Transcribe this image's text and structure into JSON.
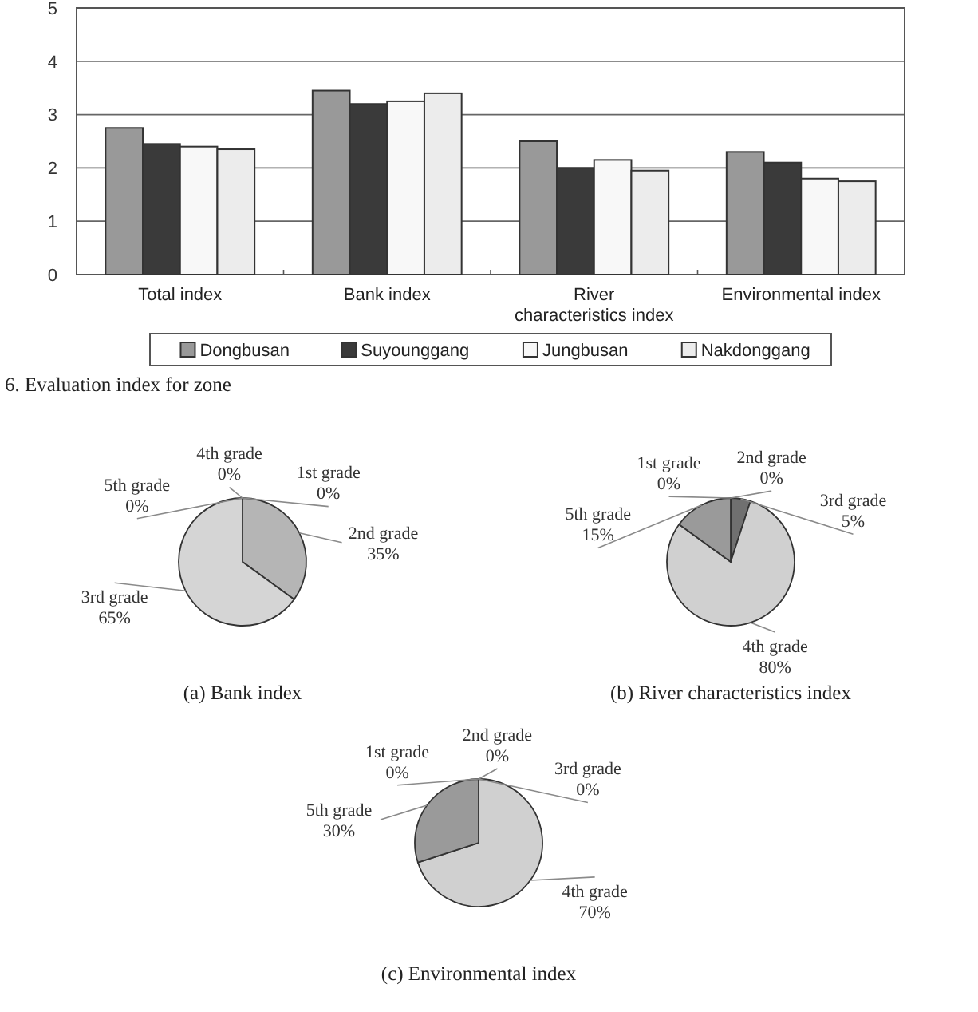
{
  "chart_data": [
    {
      "type": "bar",
      "title": "6. Evaluation index for zone",
      "categories": [
        "Total index",
        "Bank index",
        "River characteristics index",
        "Environmental index"
      ],
      "series": [
        {
          "name": "Dongbusan",
          "color": "#999999",
          "values": [
            2.75,
            3.45,
            2.5,
            2.3
          ]
        },
        {
          "name": "Suyounggang",
          "color": "#3a3a3a",
          "values": [
            2.45,
            3.2,
            2.0,
            2.1
          ]
        },
        {
          "name": "Jungbusan",
          "color": "#f8f8f8",
          "values": [
            2.4,
            3.25,
            2.15,
            1.8
          ]
        },
        {
          "name": "Nakdonggang",
          "color": "#ececec",
          "values": [
            2.35,
            3.4,
            1.95,
            1.75
          ]
        }
      ],
      "ylim": [
        0,
        5
      ],
      "yticks": [
        0,
        1,
        2,
        3,
        4,
        5
      ],
      "grid": "y",
      "legend": "bottom"
    },
    {
      "type": "pie",
      "title": "(a) Bank index",
      "categories": [
        "1st grade",
        "2nd grade",
        "3rd grade",
        "4th grade",
        "5th grade"
      ],
      "values": [
        0,
        35,
        65,
        0,
        0
      ],
      "value_labels": [
        "0%",
        "35%",
        "65%",
        "0%",
        "0%"
      ],
      "colors": [
        null,
        "#b5b5b5",
        "#d5d5d5",
        null,
        null
      ]
    },
    {
      "type": "pie",
      "title": "(b) River characteristics index",
      "categories": [
        "1st grade",
        "2nd grade",
        "3rd grade",
        "4th grade",
        "5th grade"
      ],
      "values": [
        0,
        0,
        5,
        80,
        15
      ],
      "value_labels": [
        "0%",
        "0%",
        "5%",
        "80%",
        "15%"
      ],
      "colors": [
        null,
        null,
        "#707070",
        "#d0d0d0",
        "#9a9a9a"
      ]
    },
    {
      "type": "pie",
      "title": "(c) Environmental index",
      "categories": [
        "1st grade",
        "2nd grade",
        "3rd grade",
        "4th grade",
        "5th grade"
      ],
      "values": [
        0,
        0,
        0,
        70,
        30
      ],
      "value_labels": [
        "0%",
        "0%",
        "0%",
        "70%",
        "30%"
      ],
      "colors": [
        null,
        null,
        null,
        "#d0d0d0",
        "#9a9a9a"
      ]
    }
  ]
}
